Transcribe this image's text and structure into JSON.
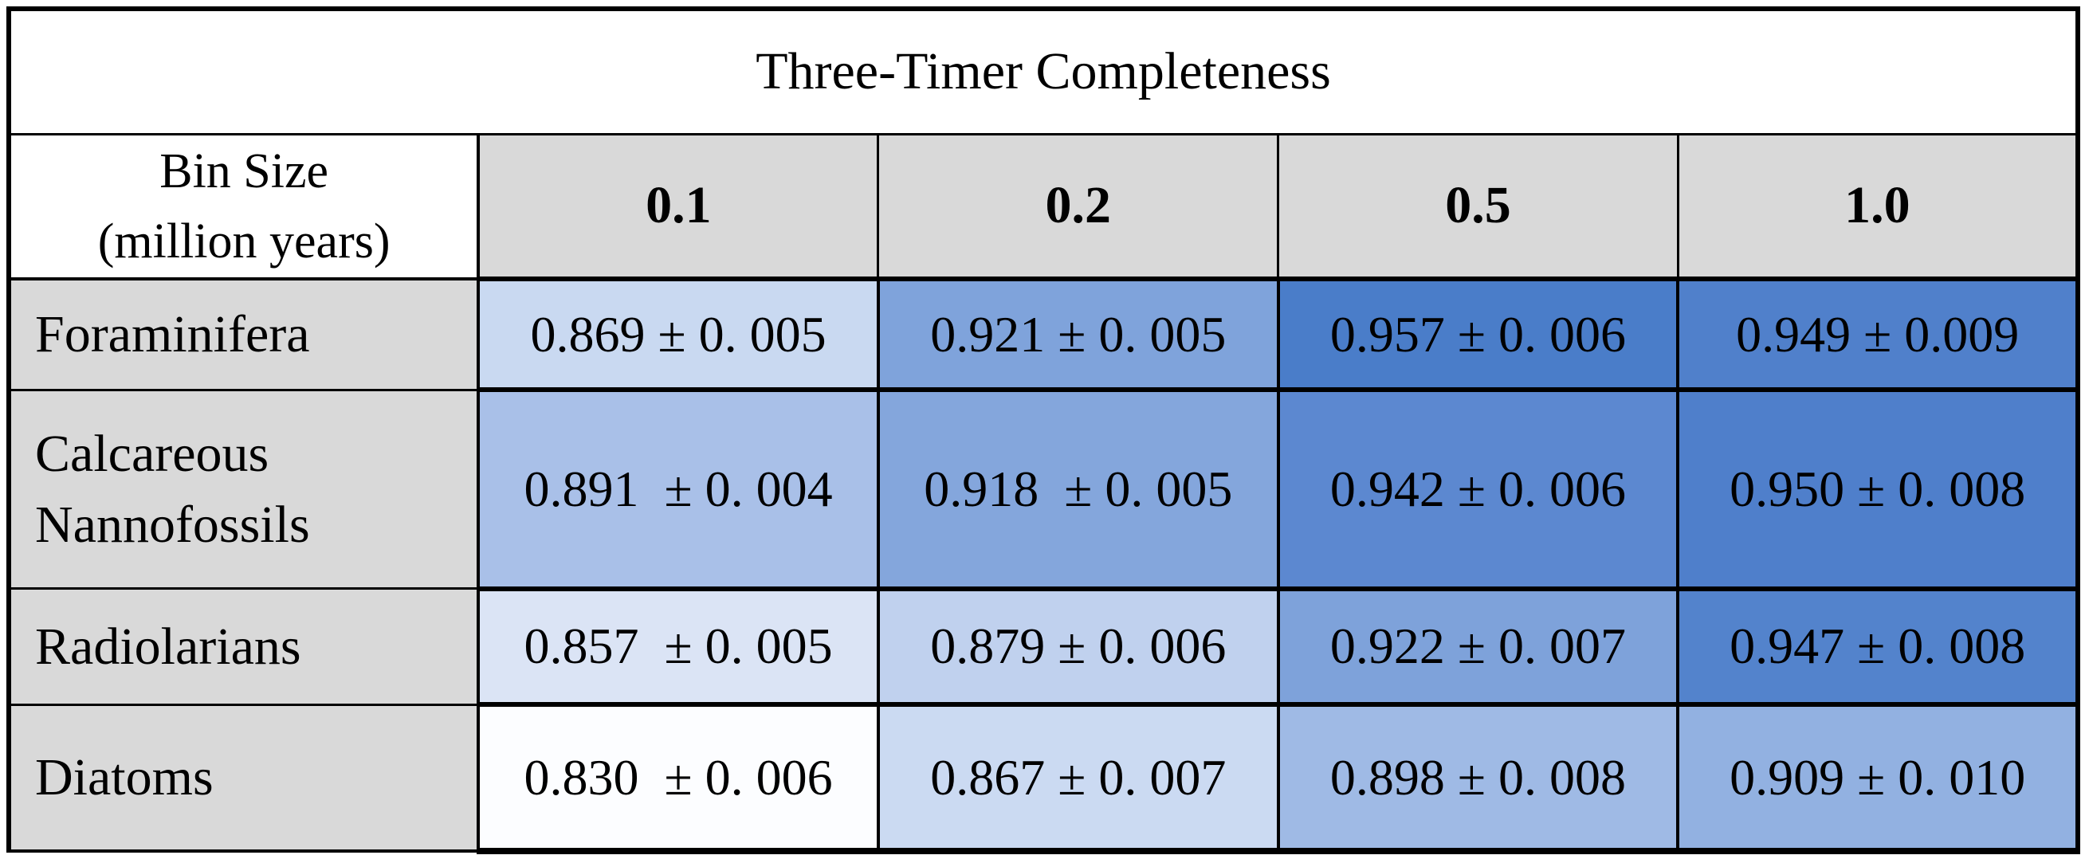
{
  "title": "Three-Timer Completeness",
  "colors": {
    "header_bg": "#d9d9d9",
    "label_bg": "#d9d9d9",
    "border": "#000000",
    "heat_low": "#fcfdff",
    "heat_high": "#4a7dc9"
  },
  "header": {
    "corner_line1": "Bin Size",
    "corner_line2": "(million years)",
    "bin_sizes": [
      "0.1",
      "0.2",
      "0.5",
      "1.0"
    ]
  },
  "rows": [
    {
      "label": "Foraminifera",
      "cells": [
        {
          "text": "0.869 ± 0. 005",
          "bg": "#c9d9f1"
        },
        {
          "text": "0.921 ± 0. 005",
          "bg": "#7fa3db"
        },
        {
          "text": "0.957 ± 0. 006",
          "bg": "#4a7dc9"
        },
        {
          "text": "0.949 ± 0.009",
          "bg": "#5080cb"
        }
      ]
    },
    {
      "label": "Calcareous Nannofossils",
      "cells": [
        {
          "text": "0.891  ± 0. 004",
          "bg": "#a9c0e8"
        },
        {
          "text": "0.918  ± 0. 005",
          "bg": "#84a6dc"
        },
        {
          "text": "0.942 ± 0. 006",
          "bg": "#5c88d0"
        },
        {
          "text": "0.950 ± 0. 008",
          "bg": "#4f7fcb"
        }
      ]
    },
    {
      "label": "Radiolarians",
      "cells": [
        {
          "text": "0.857  ± 0. 005",
          "bg": "#dbe4f5"
        },
        {
          "text": "0.879 ± 0. 006",
          "bg": "#c0d1ee"
        },
        {
          "text": "0.922 ± 0. 007",
          "bg": "#7ea2da"
        },
        {
          "text": "0.947 ± 0. 008",
          "bg": "#5383cc"
        }
      ]
    },
    {
      "label": "Diatoms",
      "cells": [
        {
          "text": "0.830  ± 0. 006",
          "bg": "#fcfdff"
        },
        {
          "text": "0.867 ± 0. 007",
          "bg": "#cbdaf2"
        },
        {
          "text": "0.898 ± 0. 008",
          "bg": "#9fbae5"
        },
        {
          "text": "0.909 ± 0. 010",
          "bg": "#92b1e1"
        }
      ]
    }
  ],
  "chart_data": {
    "type": "heatmap",
    "title": "Three-Timer Completeness",
    "xlabel": "Bin Size (million years)",
    "columns": [
      "0.1",
      "0.2",
      "0.5",
      "1.0"
    ],
    "row_categories": [
      "Foraminifera",
      "Calcareous Nannofossils",
      "Radiolarians",
      "Diatoms"
    ],
    "values": [
      [
        0.869,
        0.921,
        0.957,
        0.949
      ],
      [
        0.891,
        0.918,
        0.942,
        0.95
      ],
      [
        0.857,
        0.879,
        0.922,
        0.947
      ],
      [
        0.83,
        0.867,
        0.898,
        0.909
      ]
    ],
    "errors": [
      [
        0.005,
        0.005,
        0.006,
        0.009
      ],
      [
        0.004,
        0.005,
        0.006,
        0.008
      ],
      [
        0.005,
        0.006,
        0.007,
        0.008
      ],
      [
        0.006,
        0.007,
        0.008,
        0.01
      ]
    ],
    "value_range": [
      0.83,
      0.957
    ],
    "colorscale": "white (low) to medium blue (high)",
    "grid": true,
    "legend": "none"
  }
}
